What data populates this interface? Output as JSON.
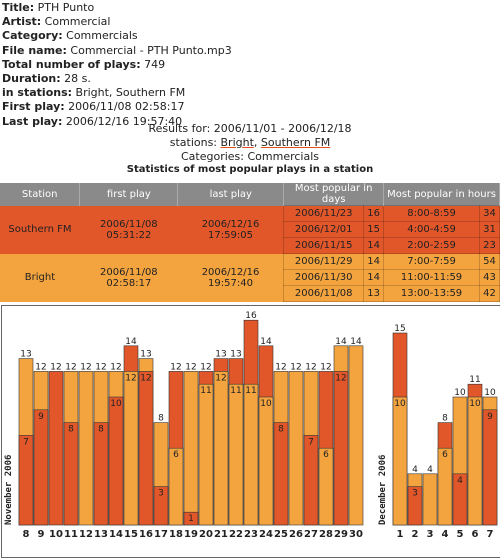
{
  "info": {
    "title_label": "Title:",
    "title_value": "PTH Punto",
    "artist_label": "Artist:",
    "artist_value": "Commercial",
    "category_label": "Category:",
    "category_value": "Commercials",
    "filename_label": "File name:",
    "filename_value": "Commercial - PTH Punto.mp3",
    "plays_label": "Total number of plays:",
    "plays_value": "749",
    "duration_label": "Duration:",
    "duration_value": "28 s.",
    "stations_label": "in stations:",
    "stations_value": "Bright, Southern FM",
    "first_label": "First play:",
    "first_value": "2006/11/08 02:58:17",
    "last_label": "Last play:",
    "last_value": "2006/12/16 19:57:40"
  },
  "results": {
    "line1": "Results for: 2006/11/01 - 2006/12/18",
    "stations_prefix": "stations:",
    "station_link1": "Bright",
    "separator": ",",
    "station_link2": "Southern FM",
    "categories": "Categories: Commercials"
  },
  "stats_title": "Statistics of most popular plays in a station",
  "table": {
    "headers": [
      "Station",
      "first play",
      "last play",
      "Most popular in days",
      "Most popular in hours"
    ],
    "stations": [
      {
        "name": "Southern FM",
        "first": "2006/11/08 05:31:22",
        "last": "2006/12/16 17:59:05",
        "days": [
          [
            "2006/11/23",
            "16"
          ],
          [
            "2006/12/01",
            "15"
          ],
          [
            "2006/11/15",
            "14"
          ]
        ],
        "hours": [
          [
            "8:00-8:59",
            "34"
          ],
          [
            "4:00-4:59",
            "31"
          ],
          [
            "2:00-2:59",
            "23"
          ]
        ]
      },
      {
        "name": "Bright",
        "first": "2006/11/08 02:58:17",
        "last": "2006/12/16 19:57:40",
        "days": [
          [
            "2006/11/29",
            "14"
          ],
          [
            "2006/11/30",
            "14"
          ],
          [
            "2006/11/08",
            "13"
          ]
        ],
        "hours": [
          [
            "7:00-7:59",
            "54"
          ],
          [
            "11:00-11:59",
            "43"
          ],
          [
            "13:00-13:59",
            "42"
          ]
        ]
      }
    ]
  },
  "colors": {
    "bright": "#f4a43f",
    "southern": "#e2572a",
    "header": "#8a8a8a"
  },
  "chart_data": {
    "type": "bar",
    "stacked": true,
    "groups": [
      {
        "label": "November 2006",
        "days": [
          "8",
          "9",
          "10",
          "11",
          "12",
          "13",
          "14",
          "15",
          "16",
          "17",
          "18",
          "19",
          "20",
          "21",
          "22",
          "23",
          "24",
          "25",
          "26",
          "27",
          "28",
          "29",
          "30"
        ],
        "totals": [
          13,
          12,
          12,
          12,
          12,
          12,
          12,
          14,
          13,
          8,
          12,
          12,
          12,
          13,
          13,
          16,
          14,
          12,
          12,
          12,
          12,
          14,
          14
        ],
        "inner": [
          7,
          9,
          null,
          8,
          null,
          8,
          10,
          12,
          12,
          3,
          6,
          1,
          11,
          12,
          11,
          11,
          10,
          8,
          null,
          7,
          6,
          12,
          null
        ],
        "top_station": [
          "bright",
          "bright",
          "southern",
          "bright",
          "bright",
          "bright",
          "bright",
          "southern",
          "bright",
          "bright",
          "southern",
          "bright",
          "southern",
          "southern",
          "southern",
          "southern",
          "southern",
          "bright",
          "bright",
          "bright",
          "southern",
          "bright",
          "bright"
        ]
      },
      {
        "label": "December 2006",
        "days": [
          "1",
          "2",
          "3",
          "4",
          "5",
          "6",
          "7"
        ],
        "totals": [
          15,
          4,
          4,
          8,
          10,
          11,
          10
        ],
        "inner": [
          10,
          3,
          null,
          6,
          4,
          10,
          9
        ],
        "top_station": [
          "southern",
          "bright",
          "bright",
          "southern",
          "bright",
          "southern",
          "bright"
        ]
      }
    ],
    "ymax": 17
  }
}
